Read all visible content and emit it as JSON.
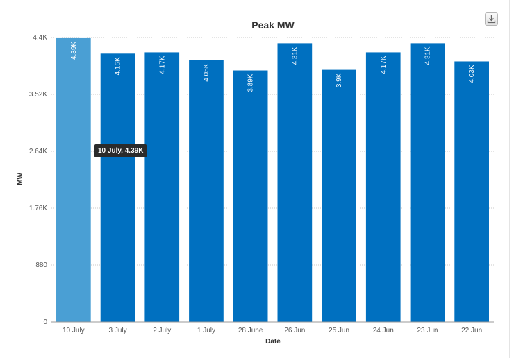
{
  "chart_data": {
    "type": "bar",
    "title": "Peak MW",
    "xlabel": "Date",
    "ylabel": "MW",
    "categories": [
      "10 July",
      "3 July",
      "2 July",
      "1 July",
      "28 June",
      "26 Jun",
      "25 Jun",
      "24 Jun",
      "23 Jun",
      "22 Jun"
    ],
    "values": [
      4390,
      4150,
      4170,
      4050,
      3890,
      4310,
      3900,
      4170,
      4310,
      4030
    ],
    "data_labels": [
      "4.39K",
      "4.15K",
      "4.17K",
      "4.05K",
      "3.89K",
      "4.31K",
      "3.9K",
      "4.17K",
      "4.31K",
      "4.03K"
    ],
    "ylim": [
      0,
      4400
    ],
    "y_ticks": [
      0,
      880,
      1760,
      2640,
      3520,
      4400
    ],
    "y_tick_labels": [
      "0",
      "880",
      "1.76K",
      "2.64K",
      "3.52K",
      "4.4K"
    ],
    "grid": true,
    "legend": "none",
    "highlighted_index": 0,
    "colors": {
      "bar": "#0070c0",
      "bar_hover": "#4a9fd4",
      "grid": "#c8c8c8",
      "axis": "#999999"
    }
  },
  "tooltip": {
    "text": "10 July, 4.39K"
  },
  "toolbar": {
    "export_icon": "download-icon"
  }
}
